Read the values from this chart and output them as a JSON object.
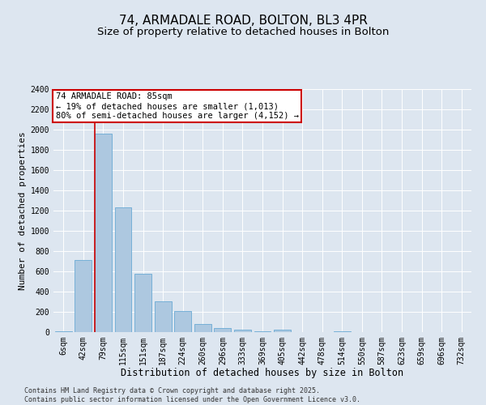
{
  "title": "74, ARMADALE ROAD, BOLTON, BL3 4PR",
  "subtitle": "Size of property relative to detached houses in Bolton",
  "xlabel": "Distribution of detached houses by size in Bolton",
  "ylabel": "Number of detached properties",
  "categories": [
    "6sqm",
    "42sqm",
    "79sqm",
    "115sqm",
    "151sqm",
    "187sqm",
    "224sqm",
    "260sqm",
    "296sqm",
    "333sqm",
    "369sqm",
    "405sqm",
    "442sqm",
    "478sqm",
    "514sqm",
    "550sqm",
    "587sqm",
    "623sqm",
    "659sqm",
    "696sqm",
    "732sqm"
  ],
  "values": [
    10,
    710,
    1960,
    1235,
    575,
    305,
    205,
    80,
    40,
    28,
    5,
    25,
    0,
    0,
    10,
    0,
    0,
    0,
    0,
    0,
    0
  ],
  "bar_color": "#adc8e0",
  "bar_edge_color": "#6aaad4",
  "vline_color": "#cc0000",
  "vline_index": 2,
  "annotation_text": "74 ARMADALE ROAD: 85sqm\n← 19% of detached houses are smaller (1,013)\n80% of semi-detached houses are larger (4,152) →",
  "annotation_box_edgecolor": "#cc0000",
  "ylim": [
    0,
    2400
  ],
  "yticks": [
    0,
    200,
    400,
    600,
    800,
    1000,
    1200,
    1400,
    1600,
    1800,
    2000,
    2200,
    2400
  ],
  "background_color": "#dde6f0",
  "plot_bg_color": "#dde6f0",
  "footer": "Contains HM Land Registry data © Crown copyright and database right 2025.\nContains public sector information licensed under the Open Government Licence v3.0.",
  "title_fontsize": 11,
  "subtitle_fontsize": 9.5,
  "xlabel_fontsize": 8.5,
  "ylabel_fontsize": 8,
  "tick_fontsize": 7,
  "annotation_fontsize": 7.5,
  "footer_fontsize": 6
}
